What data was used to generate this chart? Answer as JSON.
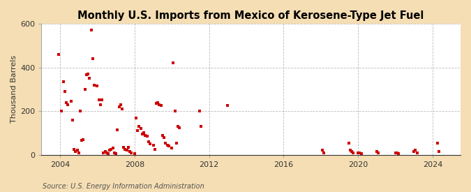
{
  "title": "Monthly U.S. Imports from Mexico of Kerosene-Type Jet Fuel",
  "ylabel": "Thousand Barrels",
  "source": "Source: U.S. Energy Information Administration",
  "background_color": "#f5deb3",
  "plot_bg_color": "#ffffff",
  "marker_color": "#cc0000",
  "ylim": [
    0,
    600
  ],
  "yticks": [
    0,
    200,
    400,
    600
  ],
  "xlim_start": 2003.0,
  "xlim_end": 2025.5,
  "xticks": [
    2004,
    2008,
    2012,
    2016,
    2020,
    2024
  ],
  "data": [
    [
      2003.92,
      460
    ],
    [
      2004.08,
      200
    ],
    [
      2004.17,
      335
    ],
    [
      2004.25,
      290
    ],
    [
      2004.33,
      240
    ],
    [
      2004.42,
      230
    ],
    [
      2004.58,
      245
    ],
    [
      2004.67,
      160
    ],
    [
      2004.75,
      25
    ],
    [
      2004.83,
      15
    ],
    [
      2004.92,
      20
    ],
    [
      2005.0,
      10
    ],
    [
      2005.08,
      200
    ],
    [
      2005.17,
      65
    ],
    [
      2005.25,
      70
    ],
    [
      2005.33,
      300
    ],
    [
      2005.42,
      365
    ],
    [
      2005.5,
      370
    ],
    [
      2005.58,
      350
    ],
    [
      2005.67,
      570
    ],
    [
      2005.75,
      440
    ],
    [
      2005.83,
      320
    ],
    [
      2006.0,
      315
    ],
    [
      2006.08,
      250
    ],
    [
      2006.17,
      230
    ],
    [
      2006.25,
      250
    ],
    [
      2006.33,
      10
    ],
    [
      2006.42,
      15
    ],
    [
      2006.5,
      10
    ],
    [
      2006.58,
      5
    ],
    [
      2006.67,
      20
    ],
    [
      2006.75,
      25
    ],
    [
      2006.83,
      30
    ],
    [
      2006.92,
      10
    ],
    [
      2007.0,
      5
    ],
    [
      2007.08,
      115
    ],
    [
      2007.17,
      220
    ],
    [
      2007.25,
      230
    ],
    [
      2007.33,
      210
    ],
    [
      2007.42,
      35
    ],
    [
      2007.5,
      25
    ],
    [
      2007.58,
      20
    ],
    [
      2007.67,
      35
    ],
    [
      2007.75,
      15
    ],
    [
      2007.83,
      10
    ],
    [
      2008.0,
      5
    ],
    [
      2008.08,
      170
    ],
    [
      2008.17,
      110
    ],
    [
      2008.25,
      130
    ],
    [
      2008.33,
      120
    ],
    [
      2008.42,
      95
    ],
    [
      2008.5,
      100
    ],
    [
      2008.58,
      90
    ],
    [
      2008.67,
      85
    ],
    [
      2008.75,
      60
    ],
    [
      2008.83,
      50
    ],
    [
      2009.0,
      45
    ],
    [
      2009.08,
      25
    ],
    [
      2009.17,
      235
    ],
    [
      2009.25,
      240
    ],
    [
      2009.33,
      230
    ],
    [
      2009.42,
      225
    ],
    [
      2009.5,
      90
    ],
    [
      2009.58,
      80
    ],
    [
      2009.67,
      55
    ],
    [
      2009.75,
      45
    ],
    [
      2009.83,
      40
    ],
    [
      2010.0,
      30
    ],
    [
      2010.08,
      420
    ],
    [
      2010.17,
      200
    ],
    [
      2010.25,
      55
    ],
    [
      2010.33,
      130
    ],
    [
      2010.42,
      125
    ],
    [
      2011.5,
      200
    ],
    [
      2011.58,
      130
    ],
    [
      2013.0,
      225
    ],
    [
      2018.08,
      20
    ],
    [
      2018.17,
      10
    ],
    [
      2019.5,
      55
    ],
    [
      2019.58,
      20
    ],
    [
      2019.67,
      15
    ],
    [
      2019.75,
      10
    ],
    [
      2020.0,
      10
    ],
    [
      2020.08,
      10
    ],
    [
      2020.17,
      5
    ],
    [
      2021.0,
      15
    ],
    [
      2021.08,
      10
    ],
    [
      2022.0,
      10
    ],
    [
      2022.08,
      10
    ],
    [
      2022.17,
      5
    ],
    [
      2023.0,
      15
    ],
    [
      2023.08,
      20
    ],
    [
      2023.17,
      10
    ],
    [
      2024.25,
      55
    ],
    [
      2024.33,
      15
    ]
  ]
}
